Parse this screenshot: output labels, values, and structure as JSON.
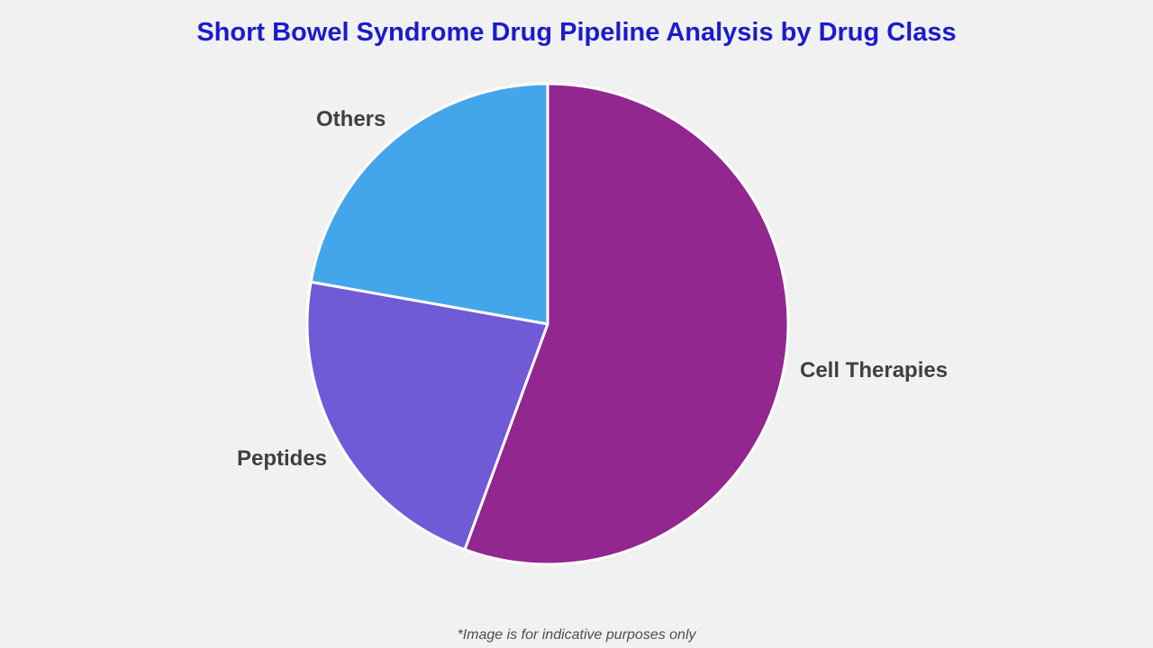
{
  "title": "Short Bowel Syndrome Drug Pipeline Analysis by Drug Class",
  "footnote": "*Image is for indicative purposes only",
  "colors": {
    "background": "#F1F1F2",
    "title": "#1B1BCB",
    "slice_label": "#3F3F3F",
    "footnote": "#4D4D4D",
    "slice_divider": "#FFFFFF"
  },
  "chart_data": {
    "type": "pie",
    "title": "Short Bowel Syndrome Drug Pipeline Analysis by Drug Class",
    "start_angle_deg": 0,
    "direction": "clockwise",
    "legend": "none",
    "labels_position": "outside",
    "slices": [
      {
        "label": "Cell Therapies",
        "value": 55.6,
        "color": "#92278F"
      },
      {
        "label": "Peptides",
        "value": 22.2,
        "color": "#715AD6"
      },
      {
        "label": "Others",
        "value": 22.2,
        "color": "#44A6EA"
      }
    ]
  }
}
